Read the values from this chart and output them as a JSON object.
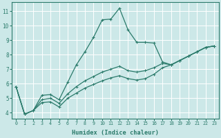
{
  "xlabel": "Humidex (Indice chaleur)",
  "bg_color": "#cce8e8",
  "grid_color": "#ffffff",
  "line_color": "#2a7a6a",
  "xlim": [
    -0.5,
    23.5
  ],
  "ylim": [
    3.6,
    11.6
  ],
  "xticks": [
    0,
    1,
    2,
    3,
    4,
    5,
    6,
    7,
    8,
    9,
    10,
    11,
    12,
    13,
    14,
    15,
    16,
    17,
    18,
    19,
    20,
    21,
    22,
    23
  ],
  "yticks": [
    4,
    5,
    6,
    7,
    8,
    9,
    10,
    11
  ],
  "series1": {
    "x": [
      0,
      1,
      2,
      3,
      4,
      5,
      6,
      7,
      8,
      9,
      10,
      11,
      12,
      13,
      14,
      15,
      16,
      17,
      18,
      19,
      20,
      21,
      22,
      23
    ],
    "y": [
      5.8,
      3.9,
      4.15,
      5.2,
      5.25,
      4.9,
      6.1,
      7.3,
      8.2,
      9.2,
      10.4,
      10.45,
      11.2,
      9.7,
      8.85,
      8.85,
      8.8,
      7.5,
      7.3,
      7.6,
      7.9,
      8.2,
      8.5,
      8.6
    ]
  },
  "series2": {
    "x": [
      0,
      1,
      2,
      3,
      4,
      5,
      6,
      7,
      8,
      9,
      10,
      11,
      12,
      13,
      14,
      15,
      16,
      17,
      18,
      19,
      20,
      21,
      22,
      23
    ],
    "y": [
      5.8,
      3.9,
      4.15,
      4.9,
      5.0,
      4.65,
      5.3,
      5.8,
      6.2,
      6.5,
      6.8,
      7.0,
      7.2,
      6.9,
      6.8,
      6.9,
      7.1,
      7.4,
      7.3,
      7.6,
      7.9,
      8.2,
      8.5,
      8.6
    ]
  },
  "series3": {
    "x": [
      0,
      1,
      2,
      3,
      4,
      5,
      6,
      7,
      8,
      9,
      10,
      11,
      12,
      13,
      14,
      15,
      16,
      17,
      18,
      19,
      20,
      21,
      22,
      23
    ],
    "y": [
      5.8,
      3.9,
      4.15,
      4.7,
      4.75,
      4.4,
      5.0,
      5.35,
      5.7,
      5.95,
      6.2,
      6.4,
      6.55,
      6.35,
      6.25,
      6.35,
      6.65,
      7.1,
      7.3,
      7.6,
      7.9,
      8.2,
      8.5,
      8.6
    ]
  }
}
